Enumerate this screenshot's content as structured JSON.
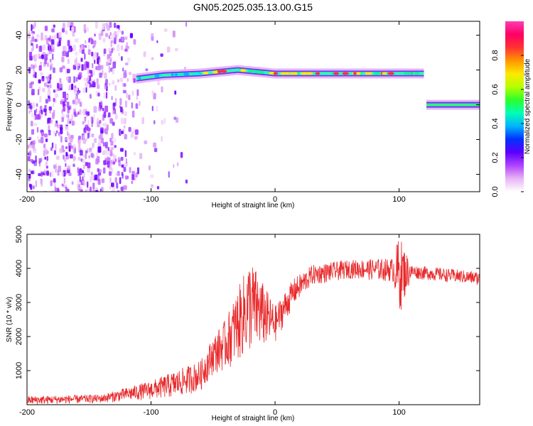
{
  "title": "GN05.2025.035.13.00.G15",
  "colors": {
    "snr_line": "#e8282a",
    "colorbar": [
      "#ffffff",
      "#e8b4f4",
      "#b043ff",
      "#5a00ff",
      "#0032ff",
      "#00b4ff",
      "#00ffb4",
      "#2cff2c",
      "#b4ff00",
      "#ffe800",
      "#ff9600",
      "#ff3232",
      "#ff0064",
      "#ff3cb4"
    ]
  },
  "chart_data": [
    {
      "type": "heatmap",
      "xlabel": "Height of straight line (km)",
      "ylabel": "Frequency (Hz)",
      "xlim": [
        -200,
        165
      ],
      "ylim": [
        -50,
        48
      ],
      "xticks": [
        "-200",
        "-100",
        "0",
        "100"
      ],
      "yticks": [
        "-40",
        "-20",
        "0",
        "20",
        "40"
      ],
      "colorbar": {
        "label": "Normalized spectral amplitude",
        "range": [
          0,
          1
        ],
        "ticks": [
          "0.0",
          "0.2",
          "0.4",
          "0.6",
          "0.8"
        ]
      },
      "ridge": [
        {
          "x": -112,
          "freq": 15
        },
        {
          "x": -90,
          "freq": 17
        },
        {
          "x": -60,
          "freq": 18
        },
        {
          "x": -30,
          "freq": 20
        },
        {
          "x": 0,
          "freq": 18
        },
        {
          "x": 60,
          "freq": 18
        },
        {
          "x": 120,
          "freq": 18
        },
        {
          "x": 122,
          "freq": 0
        },
        {
          "x": 165,
          "freq": 0
        }
      ],
      "noise_region": {
        "x": [
          -200,
          -112
        ],
        "freq": [
          -50,
          48
        ]
      }
    },
    {
      "type": "line",
      "xlabel": "Height of straight line (km)",
      "ylabel": "SNR (10 * v/v)",
      "xlim": [
        -200,
        165
      ],
      "ylim": [
        0,
        5000
      ],
      "xticks": [
        "-200",
        "-100",
        "0",
        "100"
      ],
      "yticks": [
        "1000",
        "2000",
        "3000",
        "4000",
        "5000"
      ],
      "series": [
        {
          "envelope": [
            {
              "x": -200,
              "low": 0,
              "high": 250
            },
            {
              "x": -140,
              "low": 50,
              "high": 300
            },
            {
              "x": -100,
              "low": 150,
              "high": 700
            },
            {
              "x": -80,
              "low": 200,
              "high": 1000
            },
            {
              "x": -60,
              "low": 400,
              "high": 1300
            },
            {
              "x": -50,
              "low": 900,
              "high": 2000
            },
            {
              "x": -40,
              "low": 1000,
              "high": 2500
            },
            {
              "x": -20,
              "low": 1500,
              "high": 4300
            },
            {
              "x": 0,
              "low": 1800,
              "high": 2900
            },
            {
              "x": 15,
              "low": 2900,
              "high": 3700
            },
            {
              "x": 30,
              "low": 3500,
              "high": 4100
            },
            {
              "x": 60,
              "low": 3700,
              "high": 4250
            },
            {
              "x": 95,
              "low": 3600,
              "high": 4300
            },
            {
              "x": 100,
              "low": 2600,
              "high": 5000
            },
            {
              "x": 110,
              "low": 3700,
              "high": 4100
            },
            {
              "x": 165,
              "low": 3500,
              "high": 3900
            }
          ]
        }
      ]
    }
  ]
}
